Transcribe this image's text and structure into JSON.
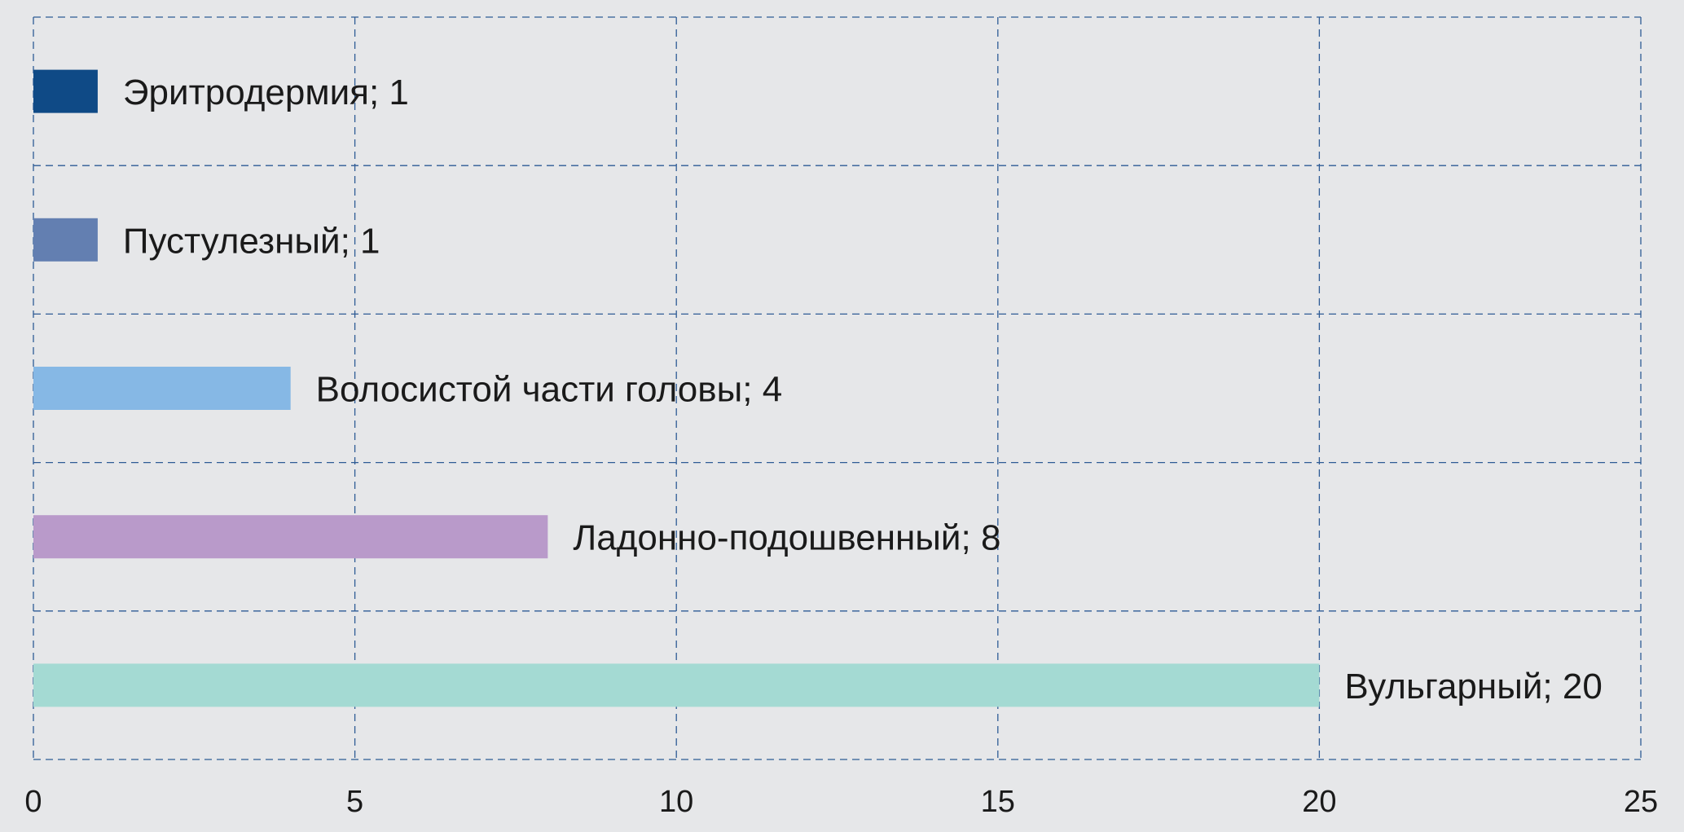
{
  "chart_data": {
    "type": "bar",
    "orientation": "horizontal",
    "xlim": [
      0,
      25
    ],
    "x_ticks": [
      0,
      5,
      10,
      15,
      20,
      25
    ],
    "grid": true,
    "bars": [
      {
        "label": "Эритродермия; 1",
        "category": "Эритродермия",
        "value": 1,
        "color": "#0f4a86"
      },
      {
        "label": "Пустулезный; 1",
        "category": "Пустулезный",
        "value": 1,
        "color": "#637fb1"
      },
      {
        "label": "Волосистой части головы; 4",
        "category": "Волосистой части головы",
        "value": 4,
        "color": "#86b8e5"
      },
      {
        "label": "Ладонно-подошвенный; 8",
        "category": "Ладонно-подошвенный",
        "value": 8,
        "color": "#b99aca"
      },
      {
        "label": "Вульгарный; 20",
        "category": "Вульгарный",
        "value": 20,
        "color": "#a4dad3"
      }
    ]
  }
}
